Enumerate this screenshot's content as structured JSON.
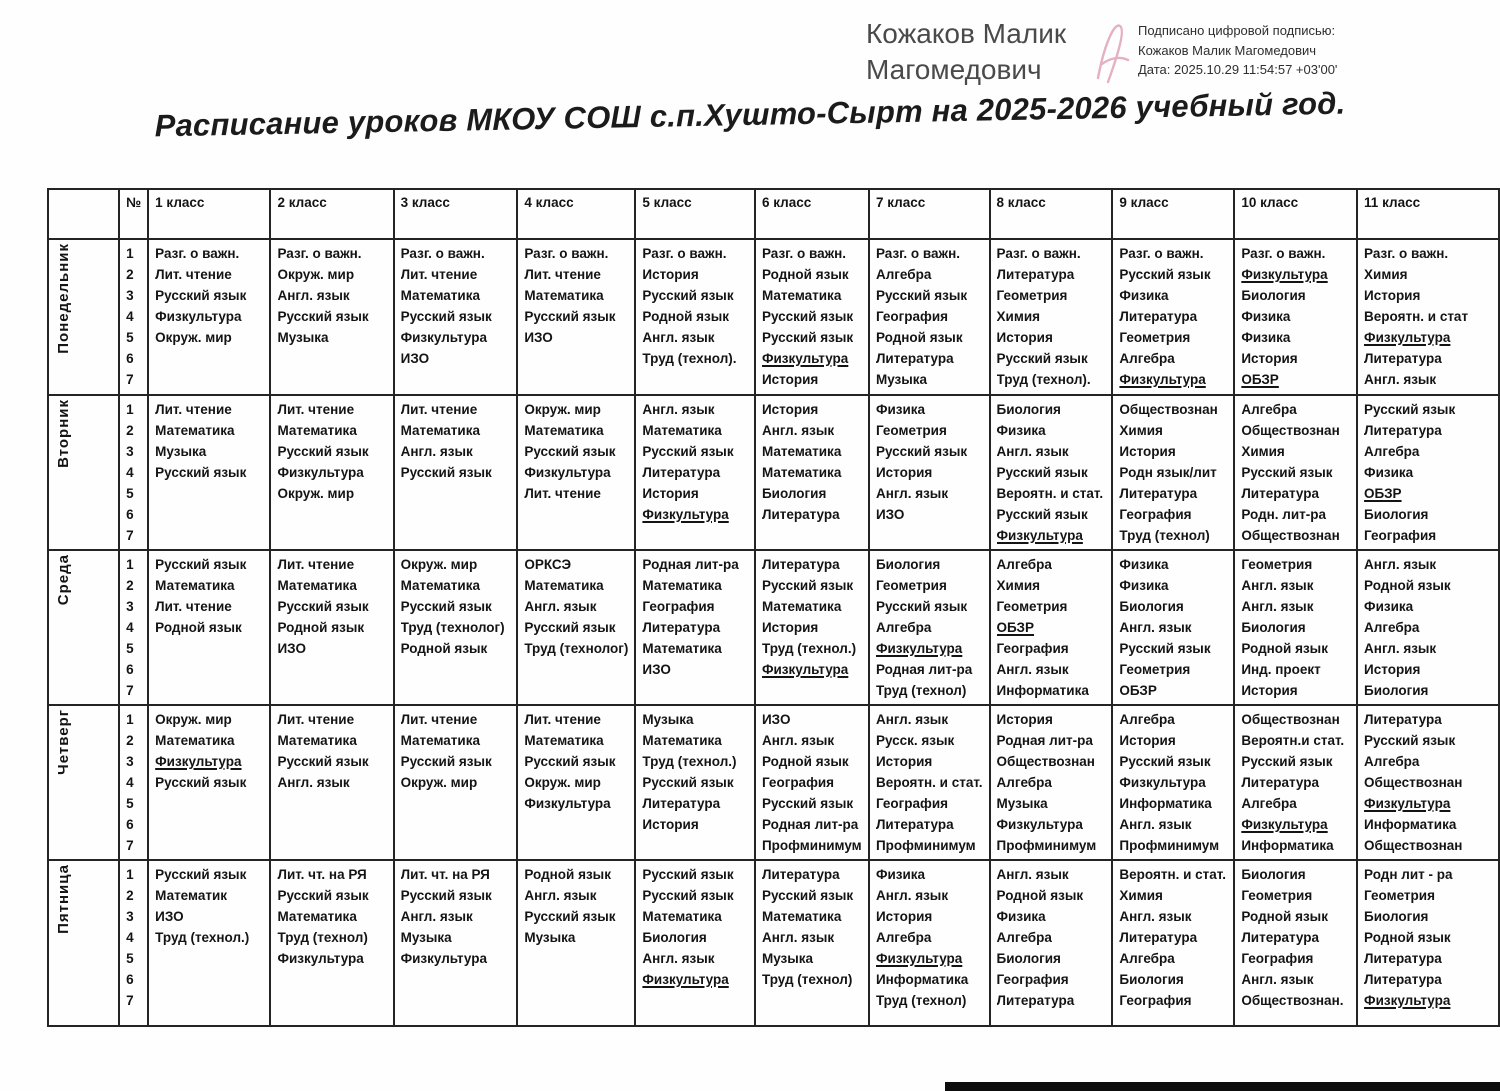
{
  "signature": {
    "name_line1": "Кожаков Малик",
    "name_line2": "Магомедович",
    "details_line1": "Подписано цифровой подписью:",
    "details_line2": "Кожаков Малик Магомедович",
    "details_line3": "Дата: 2025.10.29 11:54:57 +03'00'"
  },
  "title": "Расписание уроков МКОУ СОШ с.п.Хушто-Сырт на 2025-2026 учебный год.",
  "colors": {
    "table_border": "#242424",
    "table_text": "#141414",
    "signature_name_text": "#4a4a4a",
    "signature_flourish": "#dfa3b6"
  },
  "table": {
    "number_header": "№",
    "class_headers": [
      "1 класс",
      "2 класс",
      "3 класс",
      "4 класс",
      "5 класс",
      "6 класс",
      "7 класс",
      "8 класс",
      "9 класс",
      "10 класс",
      "11 класс"
    ],
    "period_numbers": [
      "1",
      "2",
      "3",
      "4",
      "5",
      "6",
      "7"
    ],
    "underline_marker": "u:",
    "days": [
      {
        "name": "Понедельник",
        "lessons": [
          [
            "Разг. о важн.",
            "Лит. чтение",
            "Русский язык",
            "Физкультура",
            "Окруж. мир"
          ],
          [
            "Разг. о важн.",
            "Окруж. мир",
            "Англ. язык",
            "Русский язык",
            "Музыка"
          ],
          [
            "Разг. о важн.",
            "Лит. чтение",
            "Математика",
            "Русский язык",
            "Физкультура",
            "ИЗО"
          ],
          [
            "Разг. о важн.",
            "Лит. чтение",
            "Математика",
            "Русский язык",
            "ИЗО"
          ],
          [
            "Разг. о важн.",
            "История",
            "Русский язык",
            "Родной язык",
            "Англ. язык",
            "Труд (технол)."
          ],
          [
            "Разг. о важн.",
            "Родной язык",
            "Математика",
            "Русский язык",
            "Русский язык",
            "u:Физкультура",
            "История"
          ],
          [
            "Разг. о важн.",
            "Алгебра",
            "Русский язык",
            "География",
            "Родной язык",
            "Литература",
            "Музыка"
          ],
          [
            "Разг. о важн.",
            "Литература",
            "Геометрия",
            "Химия",
            "История",
            "Русский язык",
            "Труд (технол)."
          ],
          [
            "Разг. о важн.",
            "Русский язык",
            "Физика",
            "Литература",
            "Геометрия",
            "Алгебра",
            "u:Физкультура"
          ],
          [
            "Разг. о важн.",
            "u:Физкультура",
            "Биология",
            "Физика",
            "Физика",
            "История",
            "u:ОБЗР"
          ],
          [
            "Разг. о важн.",
            "Химия",
            "История",
            "Вероятн. и стат",
            "u:Физкультура",
            "Литература",
            "Англ. язык"
          ]
        ]
      },
      {
        "name": "Вторник",
        "lessons": [
          [
            "Лит. чтение",
            "Математика",
            "Музыка",
            "Русский язык"
          ],
          [
            "Лит. чтение",
            "Математика",
            "Русский язык",
            "Физкультура",
            "Окруж. мир"
          ],
          [
            "Лит. чтение",
            "Математика",
            "Англ. язык",
            "Русский язык"
          ],
          [
            "Окруж. мир",
            "Математика",
            "Русский язык",
            "Физкультура",
            "Лит. чтение"
          ],
          [
            "Англ. язык",
            "Математика",
            "Русский язык",
            "Литература",
            "История",
            "u:Физкультура"
          ],
          [
            "История",
            "Англ. язык",
            "Математика",
            "Математика",
            "Биология",
            "Литература"
          ],
          [
            "Физика",
            "Геометрия",
            "Русский язык",
            "История",
            "Англ. язык",
            "ИЗО"
          ],
          [
            "Биология",
            "Физика",
            "Англ. язык",
            "Русский язык",
            "Вероятн. и стат.",
            "Русский язык",
            "u:Физкультура"
          ],
          [
            "Обществознан",
            "Химия",
            "История",
            "Родн язык/лит",
            "Литература",
            "География",
            "Труд (технол)"
          ],
          [
            "Алгебра",
            "Обществознан",
            "Химия",
            "Русский язык",
            "Литература",
            "Родн. лит-ра",
            "Обществознан"
          ],
          [
            "Русский язык",
            "Литература",
            "Алгебра",
            "Физика",
            "u:ОБЗР",
            "Биология",
            "География"
          ]
        ]
      },
      {
        "name": "Среда",
        "lessons": [
          [
            "Русский язык",
            "Математика",
            "Лит. чтение",
            "Родной язык"
          ],
          [
            "Лит. чтение",
            "Математика",
            "Русский язык",
            "Родной язык",
            "ИЗО"
          ],
          [
            "Окруж. мир",
            "Математика",
            "Русский язык",
            "Труд (технолог)",
            "Родной язык"
          ],
          [
            "ОРКСЭ",
            "Математика",
            "Англ. язык",
            "Русский язык",
            "Труд (технолог)"
          ],
          [
            "Родная лит-ра",
            "Математика",
            "География",
            "Литература",
            "Математика",
            "ИЗО"
          ],
          [
            "Литература",
            "Русский язык",
            "Математика",
            "История",
            "Труд (технол.)",
            "u:Физкультура"
          ],
          [
            "Биология",
            "Геометрия",
            "Русский язык",
            "Алгебра",
            "u:Физкультура",
            "Родная лит-ра",
            "Труд (технол)"
          ],
          [
            "Алгебра",
            "Химия",
            "Геометрия",
            "u:ОБЗР",
            "География",
            "Англ. язык",
            "Информатика"
          ],
          [
            "Физика",
            "Физика",
            "Биология",
            "Англ. язык",
            "Русский язык",
            "Геометрия",
            "ОБЗР"
          ],
          [
            "Геометрия",
            "Англ. язык",
            "Англ. язык",
            "Биология",
            "Родной язык",
            "Инд. проект",
            "История"
          ],
          [
            "Англ. язык",
            "Родной язык",
            "Физика",
            "Алгебра",
            "Англ. язык",
            "История",
            "Биология"
          ]
        ]
      },
      {
        "name": "Четверг",
        "lessons": [
          [
            "Окруж. мир",
            "Математика",
            "u:Физкультура",
            "Русский язык"
          ],
          [
            "Лит. чтение",
            "Математика",
            "Русский язык",
            "Англ. язык"
          ],
          [
            "Лит. чтение",
            "Математика",
            "Русский язык",
            "Окруж. мир"
          ],
          [
            "Лит. чтение",
            "Математика",
            "Русский язык",
            "Окруж. мир",
            "Физкультура"
          ],
          [
            "Музыка",
            "Математика",
            "Труд (технол.)",
            "Русский язык",
            "Литература",
            "История"
          ],
          [
            "ИЗО",
            "Англ. язык",
            "Родной язык",
            "География",
            "Русский язык",
            "Родная лит-ра",
            "Профминимум"
          ],
          [
            "Англ. язык",
            "Русск. язык",
            "История",
            "Вероятн. и стат.",
            "География",
            "Литература",
            "Профминимум"
          ],
          [
            "История",
            "Родная лит-ра",
            "Обществознан",
            "Алгебра",
            "Музыка",
            "Физкультура",
            "Профминимум"
          ],
          [
            "Алгебра",
            "История",
            "Русский язык",
            "Физкультура",
            "Информатика",
            "Англ. язык",
            "Профминимум"
          ],
          [
            "Обществознан",
            "Вероятн.и стат.",
            "Русский язык",
            "Литература",
            "Алгебра",
            "u:Физкультура",
            "Информатика"
          ],
          [
            "Литература",
            "Русский язык",
            "Алгебра",
            "Обществознан",
            "u:Физкультура",
            "Информатика",
            "Обществознан"
          ]
        ]
      },
      {
        "name": "Пятница",
        "lessons": [
          [
            "Русский язык",
            "Математик",
            "ИЗО",
            "Труд (технол.)"
          ],
          [
            "Лит. чт. на РЯ",
            "Русский язык",
            "Математика",
            "Труд (технол)",
            "Физкультура"
          ],
          [
            "Лит. чт. на РЯ",
            "Русский язык",
            "Англ. язык",
            "Музыка",
            "Физкультура"
          ],
          [
            "Родной язык",
            "Англ. язык",
            "Русский язык",
            "Музыка"
          ],
          [
            "Русский язык",
            "Русский язык",
            "Математика",
            "Биология",
            "Англ. язык",
            "u:Физкультура"
          ],
          [
            "Литература",
            "Русский язык",
            "Математика",
            "Англ. язык",
            "Музыка",
            "Труд (технол)"
          ],
          [
            "Физика",
            "Англ. язык",
            "История",
            "Алгебра",
            "u:Физкультура",
            "Информатика",
            "Труд (технол)"
          ],
          [
            "Англ. язык",
            "Родной язык",
            "Физика",
            "Алгебра",
            "Биология",
            "География",
            "Литература"
          ],
          [
            "Вероятн. и стат.",
            "Химия",
            "Англ. язык",
            "Литература",
            "Алгебра",
            "Биология",
            "География"
          ],
          [
            "Биология",
            "Геометрия",
            "Родной язык",
            "Литература",
            "География",
            "Англ. язык",
            "Обществознан."
          ],
          [
            "Родн лит - ра",
            "Геометрия",
            "Биология",
            "Родной язык",
            "Литература",
            "Литература",
            "u:Физкультура"
          ]
        ]
      }
    ]
  }
}
